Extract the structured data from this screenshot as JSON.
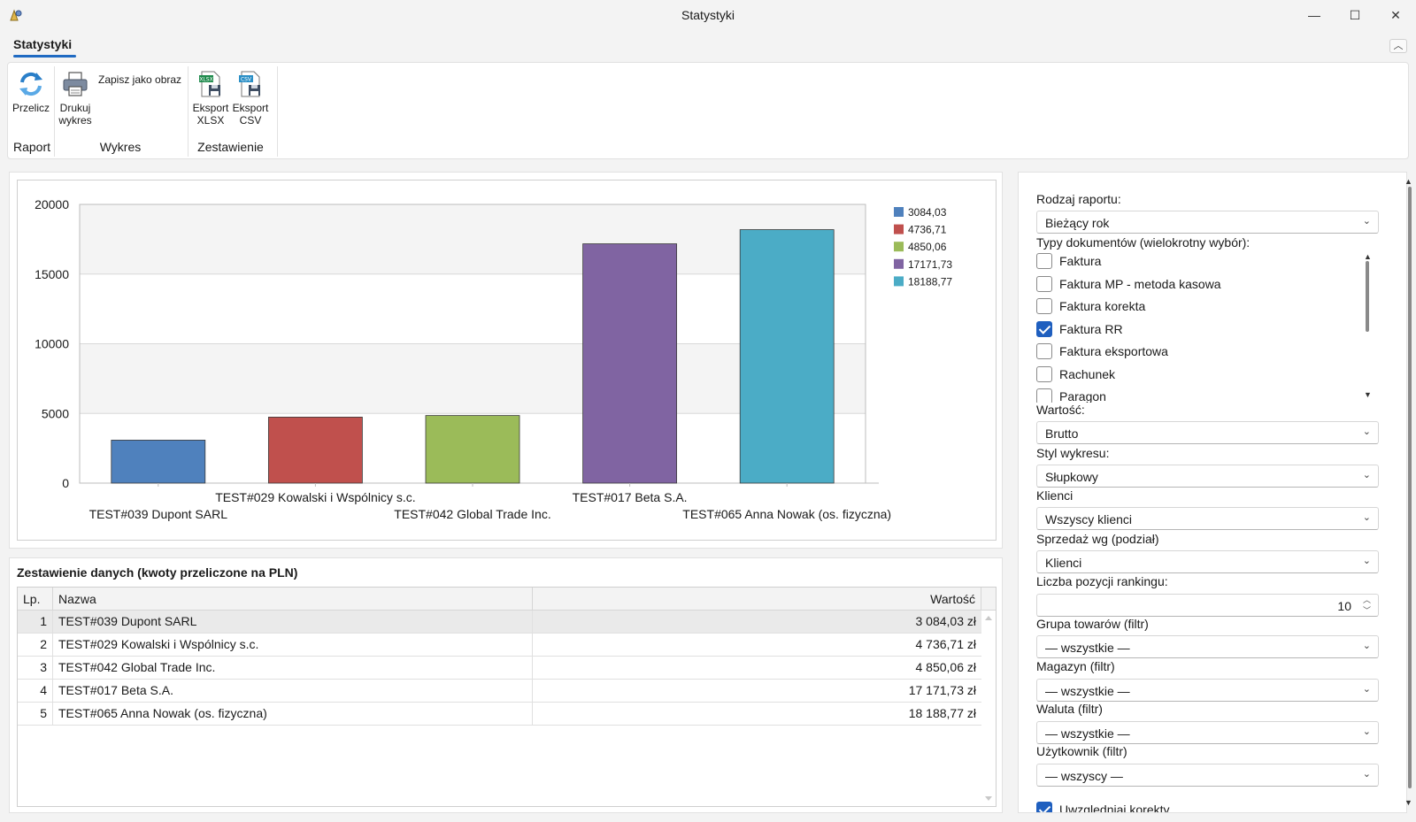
{
  "window": {
    "title": "Statystyki",
    "minimize": "—",
    "maximize": "☐",
    "close": "✕"
  },
  "ribbon": {
    "tab_label": "Statystyki",
    "collapse_glyph": "︿",
    "buttons": {
      "przelicz": "Przelicz",
      "drukuj_line1": "Drukuj",
      "drukuj_line2": "wykres",
      "zapisz": "Zapisz jako obraz",
      "eksport_xlsx_line1": "Eksport",
      "eksport_xlsx_line2": "XLSX",
      "eksport_csv_line1": "Eksport",
      "eksport_csv_line2": "CSV"
    },
    "groups": {
      "raport": "Raport",
      "wykres": "Wykres",
      "zestawienie": "Zestawienie"
    }
  },
  "chart_data": {
    "type": "bar",
    "categories": [
      "TEST#039 Dupont SARL",
      "TEST#029 Kowalski i Wspólnicy s.c.",
      "TEST#042 Global Trade Inc.",
      "TEST#017 Beta S.A.",
      "TEST#065 Anna Nowak (os. fizyczna)"
    ],
    "values": [
      3084.03,
      4736.71,
      4850.06,
      17171.73,
      18188.77
    ],
    "colors": [
      "#4f81bd",
      "#c0504d",
      "#9bbb59",
      "#8064a2",
      "#4bacc6"
    ],
    "legend": [
      "3084,03",
      "4736,71",
      "4850,06",
      "17171,73",
      "18188,77"
    ],
    "yticks": [
      "0",
      "5000",
      "10000",
      "15000",
      "20000"
    ],
    "ylim": [
      0,
      20000
    ],
    "legend_position": "top-right",
    "grid": true
  },
  "table": {
    "title": "Zestawienie danych (kwoty przeliczone na PLN)",
    "columns": {
      "lp": "Lp.",
      "name": "Nazwa",
      "value": "Wartość"
    },
    "rows": [
      {
        "lp": "1",
        "name": "TEST#039 Dupont SARL",
        "value": "3 084,03 zł"
      },
      {
        "lp": "2",
        "name": "TEST#029 Kowalski i Wspólnicy s.c.",
        "value": "4 736,71 zł"
      },
      {
        "lp": "3",
        "name": "TEST#042 Global Trade Inc.",
        "value": "4 850,06 zł"
      },
      {
        "lp": "4",
        "name": "TEST#017 Beta S.A.",
        "value": "17 171,73 zł"
      },
      {
        "lp": "5",
        "name": "TEST#065 Anna Nowak (os. fizyczna)",
        "value": "18 188,77 zł"
      }
    ]
  },
  "settings": {
    "rodzaj_label": "Rodzaj raportu:",
    "rodzaj_value": "Bieżący rok",
    "typy_label": "Typy dokumentów (wielokrotny wybór):",
    "typy": [
      {
        "label": "Faktura",
        "checked": false
      },
      {
        "label": "Faktura MP - metoda kasowa",
        "checked": false
      },
      {
        "label": "Faktura korekta",
        "checked": false
      },
      {
        "label": "Faktura RR",
        "checked": true
      },
      {
        "label": "Faktura eksportowa",
        "checked": false
      },
      {
        "label": "Rachunek",
        "checked": false
      },
      {
        "label": "Paragon",
        "checked": false
      }
    ],
    "wartosc_label": "Wartość:",
    "wartosc_value": "Brutto",
    "styl_label": "Styl wykresu:",
    "styl_value": "Słupkowy",
    "klienci_label": "Klienci",
    "klienci_value": "Wszyscy klienci",
    "sprzedaz_label": "Sprzedaż wg (podział)",
    "sprzedaz_value": "Klienci",
    "liczba_label": "Liczba pozycji rankingu:",
    "liczba_value": "10",
    "grupa_label": "Grupa towarów (filtr)",
    "grupa_value": "— wszystkie —",
    "magazyn_label": "Magazyn (filtr)",
    "magazyn_value": "— wszystkie —",
    "waluta_label": "Waluta (filtr)",
    "waluta_value": "— wszystkie —",
    "uzytkownik_label": "Użytkownik (filtr)",
    "uzytkownik_value": "— wszyscy —",
    "uwzgledniaj_label": "Uwzględniaj korekty",
    "uwzgledniaj_checked": true
  }
}
